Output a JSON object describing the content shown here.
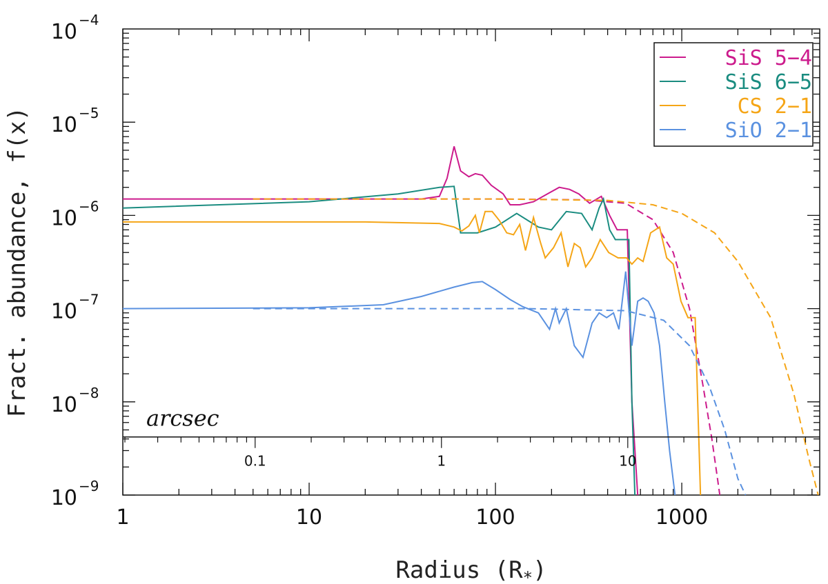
{
  "chart_data": {
    "type": "line",
    "title": "",
    "xlabel": "Radius (R",
    "xlabel_sub": "*",
    "xlabel_close": ")",
    "ylabel": "Fract. abundance, f(x)",
    "xscale": "log",
    "yscale": "log",
    "xlim": [
      1,
      5500
    ],
    "ylim": [
      1e-09,
      0.0001
    ],
    "x_ticks": [
      {
        "value": 1,
        "label": "1"
      },
      {
        "value": 10,
        "label": "10"
      },
      {
        "value": 100,
        "label": "100"
      },
      {
        "value": 1000,
        "label": "1000"
      }
    ],
    "y_ticks": [
      {
        "value": 0.0001,
        "base": "10",
        "exp": "−4"
      },
      {
        "value": 1e-05,
        "base": "10",
        "exp": "−5"
      },
      {
        "value": 1e-06,
        "base": "10",
        "exp": "−6"
      },
      {
        "value": 1e-07,
        "base": "10",
        "exp": "−7"
      },
      {
        "value": 1e-08,
        "base": "10",
        "exp": "−8"
      },
      {
        "value": 1e-09,
        "base": "10",
        "exp": "−9"
      }
    ],
    "secondary_axis": {
      "title": "arcsec",
      "y_level": 4.2e-09,
      "ticks": [
        {
          "x": 5.13,
          "label": "0.1"
        },
        {
          "x": 51.3,
          "label": "1"
        },
        {
          "x": 513,
          "label": "10"
        }
      ]
    },
    "legend_position": "top-right",
    "series": [
      {
        "name": "SiS 5−4",
        "color": "#cc1a8c",
        "solid": [
          [
            1,
            1.5e-06
          ],
          [
            20,
            1.5e-06
          ],
          [
            40,
            1.5e-06
          ],
          [
            50,
            1.6e-06
          ],
          [
            55,
            2.5e-06
          ],
          [
            60,
            5.5e-06
          ],
          [
            65,
            3e-06
          ],
          [
            72,
            2.6e-06
          ],
          [
            78,
            2.8e-06
          ],
          [
            85,
            2.7e-06
          ],
          [
            95,
            2.1e-06
          ],
          [
            110,
            1.7e-06
          ],
          [
            120,
            1.3e-06
          ],
          [
            135,
            1.3e-06
          ],
          [
            160,
            1.4e-06
          ],
          [
            190,
            1.7e-06
          ],
          [
            220,
            2e-06
          ],
          [
            250,
            1.9e-06
          ],
          [
            280,
            1.7e-06
          ],
          [
            320,
            1.35e-06
          ],
          [
            370,
            1.6e-06
          ],
          [
            410,
            1e-06
          ],
          [
            450,
            7e-07
          ],
          [
            510,
            7e-07
          ],
          [
            540,
            1e-08
          ],
          [
            580,
            1e-09
          ]
        ],
        "dashed": [
          [
            5,
            1.5e-06
          ],
          [
            100,
            1.5e-06
          ],
          [
            300,
            1.47e-06
          ],
          [
            500,
            1.35e-06
          ],
          [
            700,
            9e-07
          ],
          [
            900,
            4e-07
          ],
          [
            1100,
            1e-07
          ],
          [
            1300,
            1.5e-08
          ],
          [
            1450,
            4e-09
          ],
          [
            1600,
            1e-09
          ]
        ]
      },
      {
        "name": "SiS 6−5",
        "color": "#1a8c80",
        "solid": [
          [
            1,
            1.2e-06
          ],
          [
            10,
            1.4e-06
          ],
          [
            30,
            1.7e-06
          ],
          [
            50,
            2e-06
          ],
          [
            60,
            2.05e-06
          ],
          [
            65,
            6.5e-07
          ],
          [
            80,
            6.5e-07
          ],
          [
            100,
            7.5e-07
          ],
          [
            130,
            1.05e-06
          ],
          [
            170,
            7.5e-07
          ],
          [
            200,
            7e-07
          ],
          [
            240,
            1.1e-06
          ],
          [
            290,
            1.05e-06
          ],
          [
            330,
            7e-07
          ],
          [
            360,
            1.2e-06
          ],
          [
            380,
            1.5e-06
          ],
          [
            410,
            7e-07
          ],
          [
            440,
            5.5e-07
          ],
          [
            520,
            5.5e-07
          ],
          [
            540,
            1e-08
          ],
          [
            560,
            1e-09
          ]
        ]
      },
      {
        "name": "CS 2−1",
        "color": "#f5a516",
        "solid": [
          [
            1,
            8.5e-07
          ],
          [
            20,
            8.5e-07
          ],
          [
            50,
            8.2e-07
          ],
          [
            60,
            7.5e-07
          ],
          [
            66,
            6.8e-07
          ],
          [
            72,
            7.7e-07
          ],
          [
            78,
            1e-06
          ],
          [
            82,
            6.5e-07
          ],
          [
            88,
            1.1e-06
          ],
          [
            96,
            1.1e-06
          ],
          [
            105,
            8.8e-07
          ],
          [
            115,
            6.5e-07
          ],
          [
            125,
            6.2e-07
          ],
          [
            135,
            8e-07
          ],
          [
            145,
            4.2e-07
          ],
          [
            160,
            9.5e-07
          ],
          [
            175,
            5e-07
          ],
          [
            185,
            3.5e-07
          ],
          [
            205,
            4.5e-07
          ],
          [
            225,
            6.5e-07
          ],
          [
            245,
            2.8e-07
          ],
          [
            265,
            5e-07
          ],
          [
            285,
            4.5e-07
          ],
          [
            305,
            2.8e-07
          ],
          [
            330,
            3.5e-07
          ],
          [
            365,
            5.5e-07
          ],
          [
            405,
            4e-07
          ],
          [
            455,
            3.5e-07
          ],
          [
            505,
            3.5e-07
          ],
          [
            540,
            3e-07
          ],
          [
            580,
            3.5e-07
          ],
          [
            620,
            3.2e-07
          ],
          [
            680,
            6.5e-07
          ],
          [
            760,
            7.5e-07
          ],
          [
            830,
            3.5e-07
          ],
          [
            900,
            3e-07
          ],
          [
            990,
            1.2e-07
          ],
          [
            1080,
            8e-08
          ],
          [
            1180,
            8e-08
          ],
          [
            1260,
            1e-09
          ]
        ],
        "dashed": [
          [
            5,
            1.5e-06
          ],
          [
            100,
            1.5e-06
          ],
          [
            400,
            1.45e-06
          ],
          [
            700,
            1.3e-06
          ],
          [
            1000,
            1.05e-06
          ],
          [
            1500,
            6.5e-07
          ],
          [
            2000,
            3.2e-07
          ],
          [
            3000,
            8e-08
          ],
          [
            4000,
            1.2e-08
          ],
          [
            4800,
            2.5e-09
          ],
          [
            5400,
            1e-09
          ]
        ]
      },
      {
        "name": "SiO 2−1",
        "color": "#5a91e0",
        "solid": [
          [
            1,
            1e-07
          ],
          [
            10,
            1.02e-07
          ],
          [
            25,
            1.1e-07
          ],
          [
            40,
            1.35e-07
          ],
          [
            60,
            1.7e-07
          ],
          [
            75,
            1.9e-07
          ],
          [
            85,
            1.95e-07
          ],
          [
            100,
            1.6e-07
          ],
          [
            120,
            1.25e-07
          ],
          [
            140,
            1.05e-07
          ],
          [
            170,
            9e-08
          ],
          [
            195,
            6e-08
          ],
          [
            210,
            1e-07
          ],
          [
            220,
            7e-08
          ],
          [
            240,
            1e-07
          ],
          [
            265,
            4e-08
          ],
          [
            295,
            3e-08
          ],
          [
            330,
            7e-08
          ],
          [
            360,
            9e-08
          ],
          [
            395,
            8e-08
          ],
          [
            430,
            9e-08
          ],
          [
            460,
            6e-08
          ],
          [
            500,
            2.5e-07
          ],
          [
            540,
            4e-08
          ],
          [
            580,
            1.2e-07
          ],
          [
            620,
            1.3e-07
          ],
          [
            660,
            1.2e-07
          ],
          [
            710,
            9e-08
          ],
          [
            760,
            4e-08
          ],
          [
            810,
            1e-08
          ],
          [
            860,
            3e-09
          ],
          [
            920,
            1e-09
          ]
        ],
        "dashed": [
          [
            5,
            1e-07
          ],
          [
            150,
            1e-07
          ],
          [
            500,
            9.5e-08
          ],
          [
            800,
            7.5e-08
          ],
          [
            1100,
            4e-08
          ],
          [
            1400,
            1.5e-08
          ],
          [
            1700,
            5e-09
          ],
          [
            2000,
            1.5e-09
          ],
          [
            2200,
            1e-09
          ]
        ]
      }
    ]
  }
}
